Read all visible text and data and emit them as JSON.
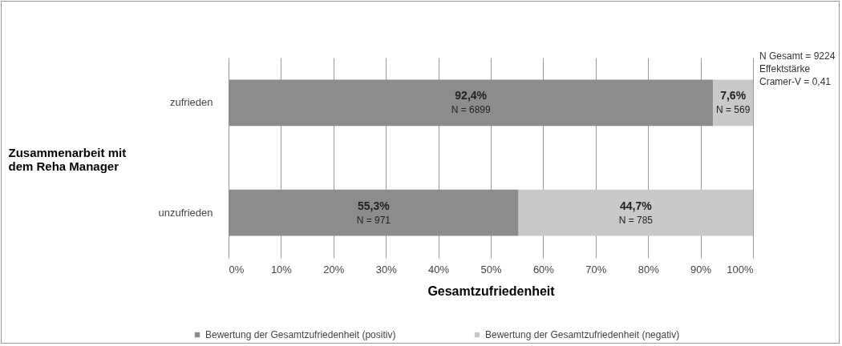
{
  "chart_data": {
    "type": "bar",
    "orientation": "horizontal",
    "stacked": true,
    "xlabel": "Gesamtzufriedenheit",
    "ylabel": "Zusammenarbeit mit\ndem Reha Manager",
    "categories": [
      "zufrieden",
      "unzufrieden"
    ],
    "series": [
      {
        "name": "Bewertung der Gesamtzufriedenheit (positiv)",
        "color": "#8c8c8c",
        "values": [
          92.4,
          55.3
        ],
        "value_labels": [
          "92,4%\nN = 6899",
          "55,3%\nN = 971"
        ]
      },
      {
        "name": "Bewertung der Gesamtzufriedenheit  (negativ)",
        "color": "#c9c9c9",
        "values": [
          7.6,
          44.7
        ],
        "value_labels": [
          "7,6%\nN = 569",
          "44,7%\nN = 785"
        ]
      }
    ],
    "xlim": [
      0,
      100
    ],
    "xticks": [
      {
        "value": 0,
        "label": "0%"
      },
      {
        "value": 10,
        "label": "10%"
      },
      {
        "value": 20,
        "label": "20%"
      },
      {
        "value": 30,
        "label": "30%"
      },
      {
        "value": 40,
        "label": "40%"
      },
      {
        "value": 50,
        "label": "50%"
      },
      {
        "value": 60,
        "label": "60%"
      },
      {
        "value": 70,
        "label": "70%"
      },
      {
        "value": 80,
        "label": "80%"
      },
      {
        "value": 90,
        "label": "90%"
      },
      {
        "value": 100,
        "label": "100%"
      }
    ],
    "grid": "x",
    "legend": "bottom",
    "annotations": [
      "N Gesamt = 9224",
      "Effektstärke",
      "Cramer-V = 0,41"
    ]
  }
}
